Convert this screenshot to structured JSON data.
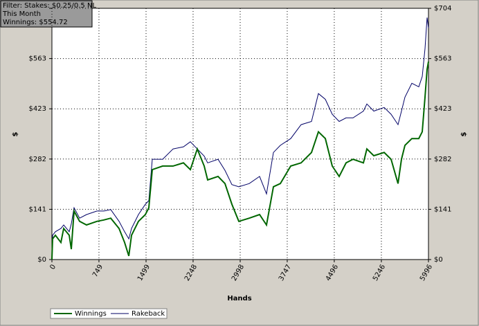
{
  "chart_data": {
    "type": "line",
    "annotations": [
      "Filter: Stakes: $0.25/0.5 NL",
      "This Month",
      "Winnings: $554.72"
    ],
    "xlabel": "Hands",
    "ylabel": "$",
    "x": [
      0,
      11,
      55,
      143,
      187,
      276,
      309,
      353,
      441,
      551,
      716,
      827,
      937,
      1069,
      1157,
      1224,
      1268,
      1378,
      1488,
      1543,
      1598,
      1764,
      1929,
      2094,
      2204,
      2315,
      2425,
      2480,
      2645,
      2756,
      2866,
      2976,
      3142,
      3307,
      3417,
      3527,
      3637,
      3803,
      3968,
      4133,
      4243,
      4354,
      4464,
      4574,
      4684,
      4795,
      4960,
      5015,
      5125,
      5291,
      5401,
      5511,
      5566,
      5621,
      5732,
      5842,
      5897,
      5941,
      5974,
      5996
    ],
    "series": [
      {
        "name": "Winnings",
        "color": "#006600",
        "values": [
          0,
          58,
          68,
          48,
          87,
          68,
          29,
          136,
          107,
          97,
          107,
          111,
          116,
          87,
          48,
          10,
          68,
          107,
          126,
          145,
          252,
          262,
          262,
          271,
          252,
          310,
          262,
          223,
          233,
          213,
          155,
          107,
          116,
          126,
          97,
          204,
          213,
          262,
          271,
          300,
          358,
          339,
          262,
          233,
          271,
          281,
          271,
          310,
          291,
          300,
          281,
          213,
          281,
          320,
          339,
          339,
          358,
          455,
          533,
          554.72
        ]
      },
      {
        "name": "Rakeback",
        "color": "#000066",
        "values": [
          0,
          68,
          78,
          87,
          97,
          78,
          100,
          145,
          116,
          126,
          136,
          136,
          140,
          107,
          78,
          58,
          87,
          126,
          155,
          165,
          281,
          281,
          310,
          316,
          330,
          310,
          290,
          271,
          281,
          250,
          210,
          204,
          213,
          233,
          184,
          300,
          320,
          339,
          378,
          387,
          465,
          449,
          407,
          387,
          397,
          397,
          416,
          436,
          416,
          426,
          407,
          378,
          416,
          455,
          494,
          484,
          513,
          591,
          678,
          649
        ]
      }
    ],
    "xlim": [
      0,
      5996
    ],
    "xticks": [
      0,
      749,
      1499,
      2248,
      2998,
      3747,
      4496,
      5246,
      5996
    ],
    "ylim": [
      0,
      704
    ],
    "yticks": [
      {
        "value": 0,
        "label": "$0"
      },
      {
        "value": 140.8,
        "label": "$141"
      },
      {
        "value": 281.6,
        "label": "$282"
      },
      {
        "value": 422.4,
        "label": "$423"
      },
      {
        "value": 563.2,
        "label": "$563"
      },
      {
        "value": 704,
        "label": "$704"
      }
    ],
    "grid": true
  }
}
